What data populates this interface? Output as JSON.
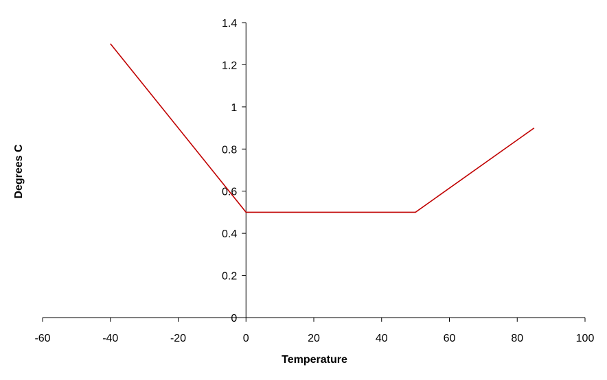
{
  "chart_data": {
    "type": "line",
    "title": "",
    "xlabel": "Temperature",
    "ylabel": "Degrees C",
    "xlim": [
      -60,
      100
    ],
    "ylim": [
      0,
      1.4
    ],
    "x_ticks": [
      -60,
      -40,
      -20,
      0,
      20,
      40,
      60,
      80,
      100
    ],
    "x_tick_labels": [
      "-60",
      "-40",
      "-20",
      "0",
      "20",
      "40",
      "60",
      "80",
      "100"
    ],
    "y_ticks": [
      0,
      0.2,
      0.4,
      0.6,
      0.8,
      1,
      1.2,
      1.4
    ],
    "y_tick_labels": [
      "0",
      "0.2",
      "0.4",
      "0.6",
      "0.8",
      "1",
      "1.2",
      "1.4"
    ],
    "grid": false,
    "legend": "none",
    "series": [
      {
        "color": "#c00000",
        "x": [
          -40,
          0,
          50,
          85
        ],
        "y": [
          1.3,
          0.5,
          0.5,
          0.9
        ]
      }
    ]
  }
}
